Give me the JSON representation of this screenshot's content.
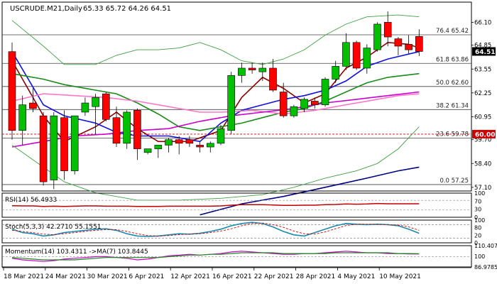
{
  "chart_data": {
    "type": "candlestick",
    "title": "USCRUDE.M21,Daily",
    "ohlc_header": "65.33 65.72 64.26 64.51",
    "last_price": "64.51",
    "marker_price": "60.00",
    "ylim": [
      56.9,
      67.2
    ],
    "y_ticks": [
      57.1,
      58.4,
      59.7,
      60.95,
      62.25,
      63.55,
      64.85,
      66.1
    ],
    "y_tick_labels": [
      "57.10",
      "58.40",
      "59.70",
      "60.95",
      "62.25",
      "63.55",
      "64.85",
      "66.10"
    ],
    "x_labels": [
      {
        "label": "18 Mar 2021",
        "i": 0
      },
      {
        "label": "24 Mar 2021",
        "i": 4
      },
      {
        "label": "30 Mar 2021",
        "i": 8
      },
      {
        "label": "6 Apr 2021",
        "i": 12
      },
      {
        "label": "12 Apr 2021",
        "i": 16
      },
      {
        "label": "16 Apr 2021",
        "i": 20
      },
      {
        "label": "22 Apr 2021",
        "i": 24
      },
      {
        "label": "28 Apr 2021",
        "i": 28
      },
      {
        "label": "4 May 2021",
        "i": 32
      },
      {
        "label": "10 May 2021",
        "i": 36
      }
    ],
    "candles": [
      {
        "o": 64.5,
        "h": 65.0,
        "l": 59.7,
        "c": 60.2
      },
      {
        "o": 60.2,
        "h": 62.1,
        "l": 59.4,
        "c": 61.6
      },
      {
        "o": 61.7,
        "h": 62.5,
        "l": 61.2,
        "c": 61.4
      },
      {
        "o": 61.0,
        "h": 61.2,
        "l": 57.2,
        "c": 57.4
      },
      {
        "o": 57.5,
        "h": 61.2,
        "l": 57.0,
        "c": 61.0
      },
      {
        "o": 60.9,
        "h": 61.3,
        "l": 57.5,
        "c": 58.0
      },
      {
        "o": 58.0,
        "h": 61.0,
        "l": 57.8,
        "c": 61.0
      },
      {
        "o": 61.2,
        "h": 62.0,
        "l": 61.0,
        "c": 61.7
      },
      {
        "o": 61.5,
        "h": 62.2,
        "l": 60.0,
        "c": 62.0
      },
      {
        "o": 62.2,
        "h": 62.3,
        "l": 60.7,
        "c": 60.8
      },
      {
        "o": 60.9,
        "h": 61.5,
        "l": 59.3,
        "c": 59.5
      },
      {
        "o": 59.5,
        "h": 61.3,
        "l": 59.2,
        "c": 61.2
      },
      {
        "o": 61.3,
        "h": 61.4,
        "l": 58.6,
        "c": 59.2
      },
      {
        "o": 59.0,
        "h": 59.2,
        "l": 58.9,
        "c": 59.2
      },
      {
        "o": 59.2,
        "h": 59.4,
        "l": 58.7,
        "c": 59.4
      },
      {
        "o": 59.4,
        "h": 59.8,
        "l": 59.0,
        "c": 59.7
      },
      {
        "o": 59.7,
        "h": 59.9,
        "l": 58.9,
        "c": 59.5
      },
      {
        "o": 59.7,
        "h": 59.9,
        "l": 59.3,
        "c": 59.5
      },
      {
        "o": 59.4,
        "h": 59.6,
        "l": 59.0,
        "c": 59.3
      },
      {
        "o": 59.3,
        "h": 59.6,
        "l": 59.0,
        "c": 59.5
      },
      {
        "o": 59.5,
        "h": 60.5,
        "l": 59.4,
        "c": 60.3
      },
      {
        "o": 60.2,
        "h": 63.4,
        "l": 60.0,
        "c": 63.2
      },
      {
        "o": 63.2,
        "h": 63.9,
        "l": 62.8,
        "c": 63.6
      },
      {
        "o": 63.6,
        "h": 63.9,
        "l": 63.3,
        "c": 63.5
      },
      {
        "o": 63.4,
        "h": 63.9,
        "l": 62.9,
        "c": 63.6
      },
      {
        "o": 63.6,
        "h": 64.1,
        "l": 62.3,
        "c": 62.4
      },
      {
        "o": 62.3,
        "h": 62.8,
        "l": 60.9,
        "c": 61.0
      },
      {
        "o": 61.0,
        "h": 61.6,
        "l": 60.9,
        "c": 61.5
      },
      {
        "o": 61.4,
        "h": 62.0,
        "l": 61.2,
        "c": 61.9
      },
      {
        "o": 61.8,
        "h": 62.0,
        "l": 61.4,
        "c": 61.6
      },
      {
        "o": 61.6,
        "h": 63.1,
        "l": 61.5,
        "c": 63.0
      },
      {
        "o": 63.0,
        "h": 64.0,
        "l": 62.8,
        "c": 63.7
      },
      {
        "o": 63.7,
        "h": 65.5,
        "l": 63.5,
        "c": 65.0
      },
      {
        "o": 65.0,
        "h": 65.1,
        "l": 63.5,
        "c": 63.6
      },
      {
        "o": 63.6,
        "h": 64.9,
        "l": 63.3,
        "c": 64.7
      },
      {
        "o": 64.6,
        "h": 66.1,
        "l": 64.5,
        "c": 66.0
      },
      {
        "o": 66.1,
        "h": 66.7,
        "l": 64.8,
        "c": 65.3
      },
      {
        "o": 65.2,
        "h": 65.3,
        "l": 64.3,
        "c": 64.8
      },
      {
        "o": 64.9,
        "h": 65.4,
        "l": 64.4,
        "c": 64.6
      },
      {
        "o": 65.33,
        "h": 65.72,
        "l": 64.26,
        "c": 64.51
      }
    ],
    "fib_levels": [
      {
        "label": "76.4",
        "value": 65.42,
        "text": "76.4 65.42"
      },
      {
        "label": "61.8",
        "value": 63.86,
        "text": "61.8 63.86"
      },
      {
        "label": "50.0",
        "value": 62.6,
        "text": "50.0 62.60"
      },
      {
        "label": "38.2",
        "value": 61.34,
        "text": "38.2 61.34"
      },
      {
        "label": "23.6",
        "value": 59.78,
        "text": "23.6 59.78"
      },
      {
        "label": "0.0",
        "value": 57.25,
        "text": "0.0 57.25"
      }
    ],
    "overlays": [
      {
        "color": "#8b0000",
        "points": [
          [
            0,
            64.0
          ],
          [
            3,
            61.0
          ],
          [
            5,
            59.6
          ],
          [
            8,
            60.4
          ],
          [
            10,
            61.2
          ],
          [
            12,
            60.3
          ],
          [
            14,
            59.6
          ],
          [
            17,
            59.6
          ],
          [
            20,
            60.2
          ],
          [
            22,
            62.0
          ],
          [
            24,
            63.1
          ],
          [
            26,
            62.5
          ],
          [
            28,
            61.7
          ],
          [
            30,
            62.2
          ],
          [
            32,
            63.6
          ],
          [
            34,
            64.2
          ],
          [
            36,
            65.0
          ],
          [
            38,
            64.9
          ],
          [
            39,
            64.7
          ]
        ]
      },
      {
        "color": "#1010e0",
        "points": [
          [
            0,
            64.5
          ],
          [
            3,
            61.6
          ],
          [
            5,
            61.0
          ],
          [
            8,
            60.6
          ],
          [
            10,
            60.1
          ],
          [
            12,
            59.9
          ],
          [
            15,
            59.9
          ],
          [
            18,
            59.6
          ],
          [
            20,
            60.6
          ],
          [
            22,
            61.3
          ],
          [
            24,
            61.6
          ],
          [
            26,
            61.9
          ],
          [
            28,
            62.1
          ],
          [
            30,
            62.4
          ],
          [
            32,
            62.9
          ],
          [
            34,
            63.7
          ],
          [
            36,
            64.1
          ],
          [
            39,
            64.5
          ]
        ]
      },
      {
        "color": "#1a8a1a",
        "points": [
          [
            0,
            63.3
          ],
          [
            3,
            63.0
          ],
          [
            5,
            62.7
          ],
          [
            8,
            62.4
          ],
          [
            10,
            62.2
          ],
          [
            12,
            61.7
          ],
          [
            14,
            61.1
          ],
          [
            16,
            60.4
          ],
          [
            18,
            60.2
          ],
          [
            20,
            60.4
          ],
          [
            22,
            60.6
          ],
          [
            24,
            60.9
          ],
          [
            26,
            61.2
          ],
          [
            28,
            61.4
          ],
          [
            30,
            61.8
          ],
          [
            32,
            62.3
          ],
          [
            34,
            62.8
          ],
          [
            36,
            63.1
          ],
          [
            39,
            63.3
          ]
        ]
      },
      {
        "color": "#ff77cc",
        "points": [
          [
            0,
            61.8
          ],
          [
            3,
            62.2
          ],
          [
            6,
            62.1
          ],
          [
            9,
            62.0
          ],
          [
            12,
            61.8
          ],
          [
            15,
            61.5
          ],
          [
            18,
            61.2
          ],
          [
            20,
            61.2
          ],
          [
            23,
            61.3
          ],
          [
            26,
            61.1
          ],
          [
            29,
            61.3
          ],
          [
            32,
            61.6
          ],
          [
            35,
            61.9
          ],
          [
            37,
            62.1
          ],
          [
            39,
            62.2
          ]
        ]
      },
      {
        "color": "#cc00cc",
        "points": [
          [
            0,
            59.3
          ],
          [
            3,
            59.6
          ],
          [
            6,
            59.9
          ],
          [
            9,
            60.0
          ],
          [
            12,
            60.2
          ],
          [
            15,
            60.3
          ],
          [
            18,
            60.7
          ],
          [
            21,
            61.0
          ],
          [
            24,
            61.2
          ],
          [
            27,
            61.4
          ],
          [
            30,
            61.7
          ],
          [
            33,
            61.9
          ],
          [
            36,
            62.1
          ],
          [
            39,
            62.3
          ]
        ]
      },
      {
        "color": "#40a040",
        "points": [
          [
            0,
            59.4
          ],
          [
            3,
            58.2
          ],
          [
            5,
            57.4
          ],
          [
            8,
            56.8
          ],
          [
            12,
            56.4
          ],
          [
            16,
            56.4
          ],
          [
            20,
            56.5
          ],
          [
            24,
            56.7
          ],
          [
            27,
            57.1
          ],
          [
            30,
            57.6
          ],
          [
            33,
            58.0
          ],
          [
            35,
            58.4
          ],
          [
            37,
            59.2
          ],
          [
            39,
            60.4
          ]
        ]
      },
      {
        "color": "#40a040",
        "points": [
          [
            0,
            66.2
          ],
          [
            3,
            64.8
          ],
          [
            5,
            63.8
          ],
          [
            8,
            63.8
          ],
          [
            10,
            64.3
          ],
          [
            12,
            64.6
          ],
          [
            14,
            64.6
          ],
          [
            16,
            64.7
          ],
          [
            18,
            65.0
          ],
          [
            20,
            64.6
          ],
          [
            22,
            64.0
          ],
          [
            24,
            63.8
          ],
          [
            26,
            64.1
          ],
          [
            28,
            64.6
          ],
          [
            30,
            65.4
          ],
          [
            32,
            66.0
          ],
          [
            34,
            66.4
          ],
          [
            37,
            66.5
          ],
          [
            39,
            66.4
          ]
        ]
      },
      {
        "color": "#000080",
        "points": [
          [
            18,
            55.6
          ],
          [
            22,
            56.2
          ],
          [
            26,
            56.6
          ],
          [
            30,
            57.1
          ],
          [
            34,
            57.6
          ],
          [
            37,
            58.0
          ],
          [
            39,
            58.2
          ]
        ]
      }
    ],
    "rsi": {
      "label": "RSI(14) 56.4933",
      "ylim": [
        0,
        100
      ],
      "levels": [
        70,
        30
      ],
      "tick_labels": [
        "100",
        "70",
        "30",
        "0"
      ],
      "values": [
        48,
        47,
        47,
        45,
        46,
        45,
        46,
        47,
        47,
        46,
        46,
        46,
        45,
        45,
        45,
        46,
        46,
        46,
        46,
        46,
        47,
        50,
        52,
        52,
        52,
        51,
        49,
        49,
        50,
        50,
        52,
        53,
        55,
        54,
        55,
        57,
        56,
        56,
        56,
        56
      ]
    },
    "stoch": {
      "label": "Stoch(5,3,3) 42.2710 55.1551",
      "ylim": [
        0,
        100
      ],
      "levels": [
        80,
        20
      ],
      "tick_labels": [
        "100",
        "80",
        "20",
        "0"
      ],
      "k": [
        60,
        45,
        40,
        30,
        35,
        45,
        50,
        55,
        60,
        62,
        55,
        40,
        30,
        28,
        30,
        35,
        40,
        38,
        42,
        50,
        60,
        75,
        85,
        90,
        85,
        70,
        50,
        35,
        30,
        45,
        60,
        75,
        85,
        82,
        80,
        82,
        80,
        75,
        60,
        42
      ],
      "d": [
        55,
        50,
        45,
        38,
        36,
        40,
        45,
        50,
        55,
        58,
        58,
        50,
        40,
        32,
        30,
        32,
        36,
        38,
        40,
        45,
        52,
        62,
        75,
        85,
        87,
        80,
        68,
        52,
        40,
        38,
        48,
        62,
        76,
        82,
        82,
        81,
        80,
        78,
        70,
        55
      ]
    },
    "momentum": {
      "label": "Momentum(14) 103.4311  ->MA(7) 103.8445",
      "ylim": [
        86.9785,
        114.0
      ],
      "tick_labels": [
        "110.4073",
        "100",
        "86.9785"
      ],
      "levels": [
        100
      ],
      "values": [
        98,
        96,
        95,
        94,
        95,
        97,
        98,
        99,
        100,
        100,
        99,
        98,
        96,
        97,
        99,
        101,
        102,
        103,
        102,
        103,
        104,
        106,
        107,
        106,
        105,
        104,
        103,
        103,
        104,
        104,
        105,
        106,
        107,
        106,
        105,
        105,
        104,
        104,
        103.5,
        103.4
      ],
      "ma": [
        99,
        98,
        97,
        96,
        96,
        96,
        96,
        97,
        98,
        99,
        99,
        99,
        99,
        99,
        99,
        100,
        101,
        102,
        102,
        103,
        103,
        104,
        105,
        105,
        105,
        105,
        104,
        104,
        104,
        104,
        104,
        105,
        105,
        105,
        105,
        105,
        105,
        104,
        104,
        103.8
      ]
    }
  }
}
